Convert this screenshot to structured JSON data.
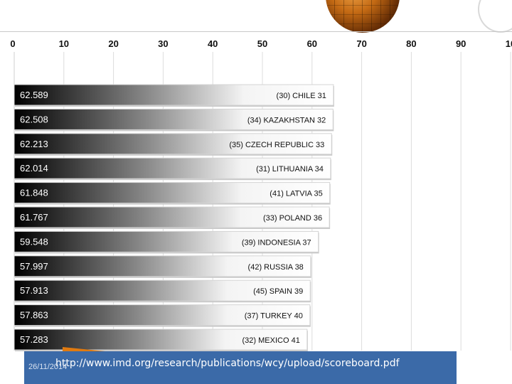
{
  "chart_data": {
    "type": "bar",
    "orientation": "horizontal",
    "xlim": [
      0,
      100
    ],
    "x_ticks": [
      "0",
      "10",
      "20",
      "30",
      "40",
      "50",
      "60",
      "70",
      "80",
      "90",
      "10"
    ],
    "grid": "vertical",
    "bar_fill": "gradient-black-to-white",
    "bars": [
      {
        "value": 62.589,
        "value_label": "62.589",
        "label": "(30) CHILE 31"
      },
      {
        "value": 62.508,
        "value_label": "62.508",
        "label": "(34) KAZAKHSTAN 32"
      },
      {
        "value": 62.213,
        "value_label": "62.213",
        "label": "(35) CZECH REPUBLIC 33"
      },
      {
        "value": 62.014,
        "value_label": "62.014",
        "label": "(31) LITHUANIA 34"
      },
      {
        "value": 61.848,
        "value_label": "61.848",
        "label": "(41) LATVIA 35"
      },
      {
        "value": 61.767,
        "value_label": "61.767",
        "label": "(33) POLAND 36"
      },
      {
        "value": 59.548,
        "value_label": "59.548",
        "label": "(39) INDONESIA 37"
      },
      {
        "value": 57.997,
        "value_label": "57.997",
        "label": "(42) RUSSIA 38"
      },
      {
        "value": 57.913,
        "value_label": "57.913",
        "label": "(45) SPAIN 39"
      },
      {
        "value": 57.863,
        "value_label": "57.863",
        "label": "(37) TURKEY 40"
      },
      {
        "value": 57.283,
        "value_label": "57.283",
        "label": "(32) MEXICO 41"
      }
    ]
  },
  "footer": {
    "date": "26/11/2014",
    "url": "http://www.imd.org/research/publications/wcy/upload/scoreboard.pdf",
    "bar_color": "#3b6aa8",
    "accent_color": "#e07a10"
  },
  "decoration": {
    "globe_color": "#c46a14"
  }
}
